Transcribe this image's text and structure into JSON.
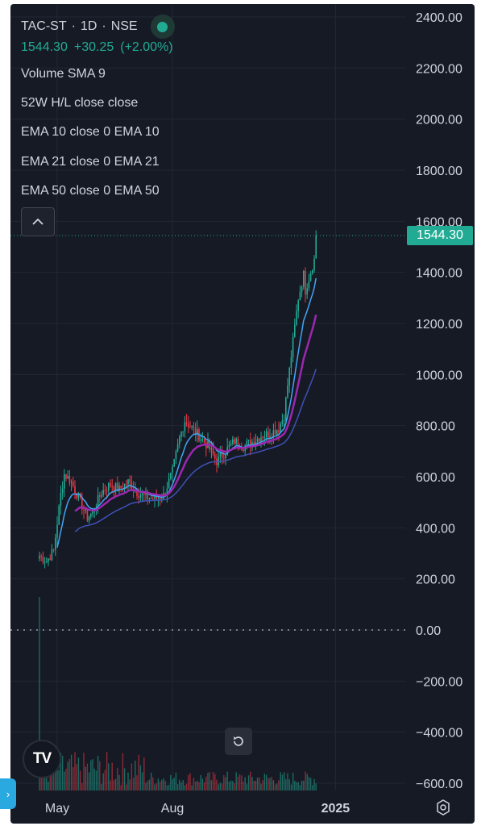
{
  "header": {
    "symbol": "TAC-ST",
    "interval": "1D",
    "exchange": "NSE",
    "separator": "·",
    "quote_price": "1544.30",
    "quote_change": "+30.25",
    "quote_change_pct": "(+2.00%)",
    "indicators": [
      "Volume SMA 9",
      "52W H/L close close",
      "EMA 10 close 0 EMA 10",
      "EMA 21 close 0 EMA 21",
      "EMA 50 close 0 EMA 50"
    ]
  },
  "colors": {
    "background": "#161a25",
    "up": "#22ab94",
    "down": "#f23645",
    "ema10": "#42a5f5",
    "ema21": "#9c27b0",
    "ema50": "#3f51b5",
    "text": "#d1d4dc"
  },
  "icons": {
    "collapse": "chevron-up-icon",
    "logo": "tradingview-logo",
    "reset": "reset-icon",
    "settings": "settings-icon",
    "side_handle": "chevron-right-icon"
  },
  "chart_data": {
    "type": "line",
    "title": "",
    "last_price_label": "1544.30",
    "y_ticks": [
      2400,
      2200,
      2000,
      1800,
      1600,
      1400,
      1200,
      1000,
      800,
      600,
      400,
      200,
      0,
      -200,
      -400,
      -600
    ],
    "y_tick_labels": [
      "2400.00",
      "2200.00",
      "2000.00",
      "1800.00",
      "1600.00",
      "1400.00",
      "1200.00",
      "1000.00",
      "800.00",
      "600.00",
      "400.00",
      "200.00",
      "0.00",
      "−200.00",
      "−400.00",
      "−600.00"
    ],
    "ylim": [
      -640,
      2480
    ],
    "x_labels": [
      {
        "label": "May",
        "index": 10
      },
      {
        "label": "Aug",
        "index": 75
      },
      {
        "label": "2025",
        "index": 167
      }
    ],
    "zero_line": 0,
    "grid": true,
    "n_bars": 180,
    "price_anchors": [
      [
        0,
        290
      ],
      [
        4,
        270
      ],
      [
        8,
        310
      ],
      [
        10,
        420
      ],
      [
        12,
        530
      ],
      [
        14,
        610
      ],
      [
        17,
        590
      ],
      [
        20,
        550
      ],
      [
        25,
        470
      ],
      [
        27,
        440
      ],
      [
        30,
        460
      ],
      [
        35,
        540
      ],
      [
        40,
        570
      ],
      [
        45,
        550
      ],
      [
        50,
        580
      ],
      [
        55,
        540
      ],
      [
        60,
        520
      ],
      [
        65,
        515
      ],
      [
        70,
        525
      ],
      [
        75,
        620
      ],
      [
        79,
        750
      ],
      [
        82,
        820
      ],
      [
        86,
        790
      ],
      [
        90,
        760
      ],
      [
        95,
        720
      ],
      [
        100,
        660
      ],
      [
        105,
        700
      ],
      [
        110,
        740
      ],
      [
        115,
        720
      ],
      [
        120,
        735
      ],
      [
        125,
        760
      ],
      [
        130,
        770
      ],
      [
        135,
        790
      ],
      [
        138,
        840
      ],
      [
        140,
        960
      ],
      [
        143,
        1130
      ],
      [
        146,
        1300
      ],
      [
        149,
        1390
      ],
      [
        150,
        1330
      ],
      [
        152,
        1380
      ],
      [
        155,
        1450
      ],
      [
        156,
        1480
      ]
    ],
    "volume_bars_note": "",
    "series": [
      {
        "key": "ema10",
        "period": 10
      },
      {
        "key": "ema21",
        "period": 21
      },
      {
        "key": "ema50",
        "period": 50
      }
    ]
  }
}
